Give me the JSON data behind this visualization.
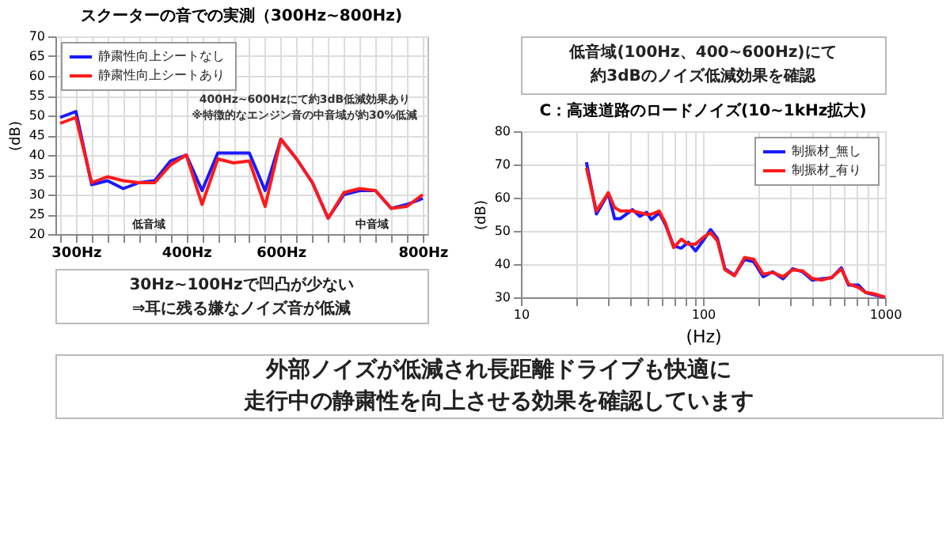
{
  "chart_data": [
    {
      "type": "line",
      "title": "スクーターの音での実測（300Hz~800Hz)",
      "ylabel": "(dB)",
      "categories": [
        null,
        "300Hz",
        null,
        null,
        null,
        null,
        null,
        null,
        "400Hz",
        null,
        null,
        null,
        null,
        null,
        "600Hz",
        null,
        null,
        null,
        null,
        null,
        null,
        null,
        null,
        "800Hz"
      ],
      "series": [
        {
          "name": "静粛性向上シートなし",
          "color": "#1a1aff",
          "values": [
            49.5,
            51,
            32.5,
            33.5,
            31.5,
            33,
            33.5,
            38.5,
            40,
            31,
            40.5,
            40.5,
            40.5,
            31,
            44,
            39,
            33,
            24,
            30,
            31,
            31,
            26.5,
            27.5,
            29
          ]
        },
        {
          "name": "静粛性向上シートあり",
          "color": "#ff1a1a",
          "values": [
            48,
            49.5,
            33,
            34.5,
            33.5,
            33,
            33,
            37.5,
            40,
            27.5,
            39,
            38,
            38.5,
            27,
            44,
            39,
            33,
            24,
            30.5,
            31.5,
            31,
            26.5,
            27,
            30
          ]
        }
      ],
      "ylim": [
        20,
        70
      ],
      "yticks": [
        20,
        25,
        30,
        35,
        40,
        45,
        50,
        55,
        60,
        65,
        70
      ],
      "grid": true,
      "legend": "top left",
      "annotations": [
        "400Hz~600Hzにて約3dB低減効果あり",
        "※特徴的なエンジン音の中音域が約30%低減",
        "低音域",
        "中音域"
      ]
    },
    {
      "type": "line",
      "title": "C：高速道路のロードノイズ(10~1kHz拡大)",
      "xlabel": "(Hz)",
      "ylabel": "(dB)",
      "log": "x",
      "x": [
        22.9,
        26,
        30.2,
        32.7,
        35.2,
        41,
        45,
        49,
        52,
        57.5,
        62,
        69,
        76,
        83,
        91,
        100,
        110,
        120,
        132,
        149,
        169,
        190,
        214,
        241,
        275,
        311,
        352,
        398,
        450,
        510,
        575,
        630,
        713,
        780,
        880,
        1000
      ],
      "series": [
        {
          "name": "制振材_無し",
          "color": "#1a1aff",
          "values": [
            70.7,
            55.1,
            61.3,
            53.7,
            53.7,
            56.4,
            54.4,
            55.6,
            53.4,
            55.4,
            52,
            45.5,
            44.8,
            46.6,
            44,
            47,
            50.4,
            47.7,
            38.6,
            36.7,
            41.4,
            40.7,
            36.2,
            37.7,
            35.6,
            38.6,
            37.7,
            35.2,
            35.6,
            35.9,
            38.9,
            33.7,
            33.7,
            31.5,
            30.7,
            30
          ]
        },
        {
          "name": "制振材_有り",
          "color": "#ff1a1a",
          "values": [
            69,
            56,
            61.5,
            57,
            56,
            56,
            55.5,
            55,
            55,
            56,
            52.5,
            45,
            47.5,
            46,
            46,
            48,
            49.5,
            47,
            38.3,
            36.5,
            42,
            41.5,
            37,
            37.5,
            36.2,
            38.3,
            38,
            35.7,
            35.2,
            36,
            38.5,
            34,
            33,
            31.5,
            31,
            30
          ]
        }
      ],
      "xlim": [
        10,
        1000
      ],
      "xticks": [
        10,
        {
          "value": 20,
          "label": null
        },
        {
          "value": 30,
          "label": null
        },
        {
          "value": 40,
          "label": null
        },
        {
          "value": 50,
          "label": null
        },
        {
          "value": 60,
          "label": null
        },
        {
          "value": 70,
          "label": null
        },
        {
          "value": 80,
          "label": null
        },
        {
          "value": 90,
          "label": null
        },
        100,
        {
          "value": 200,
          "label": null
        },
        {
          "value": 300,
          "label": null
        },
        {
          "value": 400,
          "label": null
        },
        {
          "value": 500,
          "label": null
        },
        {
          "value": 600,
          "label": null
        },
        {
          "value": 700,
          "label": null
        },
        {
          "value": 800,
          "label": null
        },
        {
          "value": 900,
          "label": null
        },
        1000
      ],
      "ylim": [
        30,
        80
      ],
      "yticks": [
        30,
        40,
        50,
        60,
        70,
        80
      ],
      "grid": true,
      "legend": "top right",
      "annotations": [
        "低音域(100Hz、400~600Hz)にて",
        "約3dBのノイズ低減効果を確認",
        "30Hz~100Hzで凹凸が少ない",
        "⇒耳に残る嫌なノイズ音が低減"
      ]
    },
    {
      "type": "other",
      "annotations": [
        "外部ノイズが低減され長距離ドライブも快適に",
        "走行中の静粛性を向上させる効果を確認しています"
      ]
    }
  ]
}
